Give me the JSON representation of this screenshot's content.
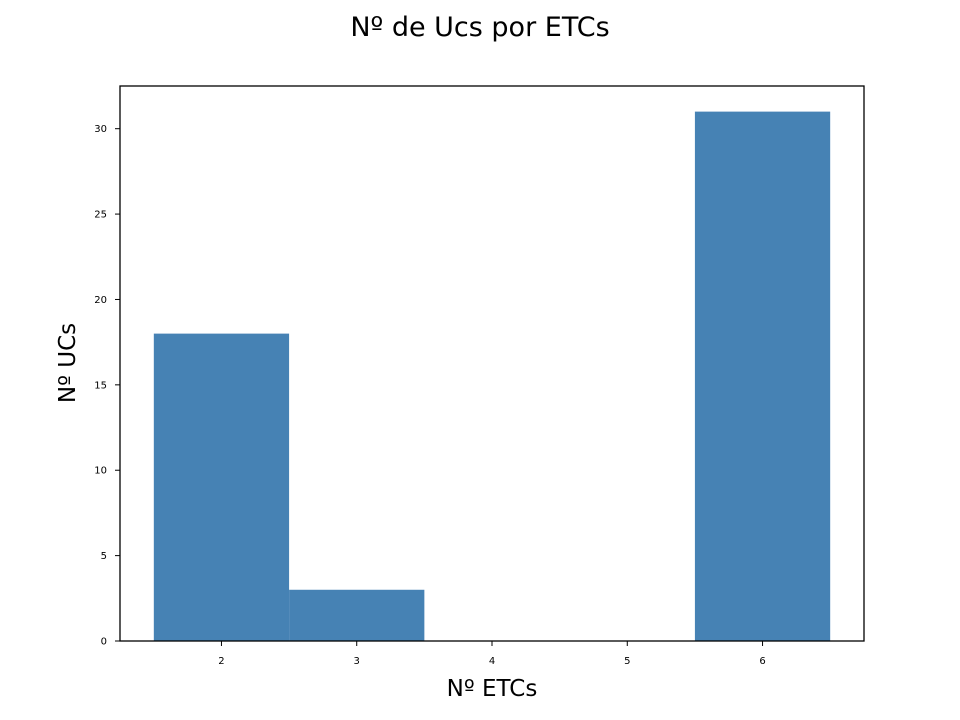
{
  "chart_data": {
    "type": "bar",
    "title": "Nº de Ucs por ETCs",
    "xlabel": "Nº ETCs",
    "ylabel": "Nº UCs",
    "categories": [
      2,
      3,
      4,
      5,
      6
    ],
    "values": [
      18,
      3,
      0,
      0,
      31
    ],
    "xlim": [
      1.25,
      6.75
    ],
    "ylim": [
      0,
      32.5
    ],
    "yticks": [
      0,
      5,
      10,
      15,
      20,
      25,
      30
    ],
    "xticks": [
      2,
      3,
      4,
      5,
      6
    ],
    "bar_color": "#4682b4",
    "grid": false,
    "legend": "none"
  }
}
